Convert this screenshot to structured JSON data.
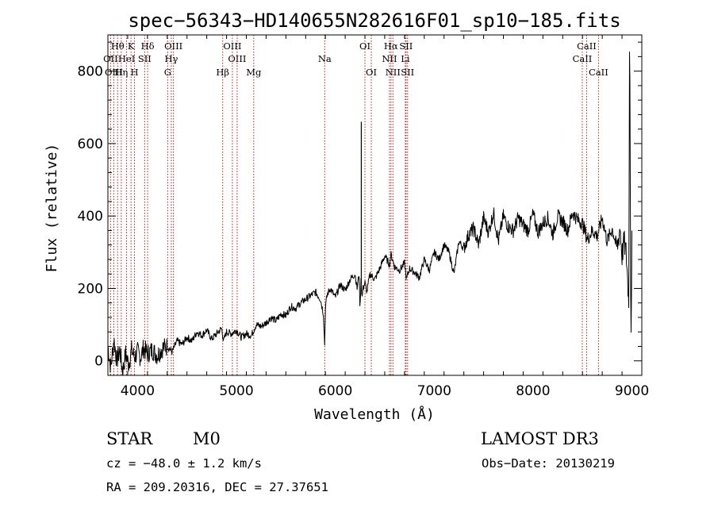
{
  "chart_data": {
    "type": "line",
    "title": "spec−56343−HD140655N282616F01_sp10−185.fits",
    "xlabel": "Wavelength (Å)",
    "ylabel": "Flux (relative)",
    "xlim": [
      3700,
      9100
    ],
    "ylim": [
      -40,
      900
    ],
    "xticks": [
      4000,
      5000,
      6000,
      7000,
      8000,
      9000
    ],
    "yticks": [
      0,
      200,
      400,
      600,
      800
    ],
    "xtick_labels": [
      "4000",
      "5000",
      "6000",
      "7000",
      "8000",
      "9000"
    ],
    "ytick_labels": [
      "0",
      "200",
      "400",
      "600",
      "800"
    ],
    "grid": false,
    "series": [
      {
        "name": "flux",
        "color": "#000000",
        "x": [
          3700,
          3730,
          3760,
          3790,
          3820,
          3850,
          3880,
          3910,
          3940,
          3970,
          4000,
          4030,
          4060,
          4100,
          4150,
          4200,
          4250,
          4300,
          4350,
          4400,
          4450,
          4500,
          4550,
          4600,
          4650,
          4700,
          4750,
          4800,
          4850,
          4870,
          4900,
          4950,
          5000,
          5050,
          5100,
          5150,
          5200,
          5250,
          5300,
          5350,
          5400,
          5450,
          5500,
          5550,
          5600,
          5650,
          5700,
          5750,
          5800,
          5850,
          5880,
          5890,
          5893,
          5900,
          5920,
          5950,
          6000,
          6050,
          6100,
          6150,
          6200,
          6220,
          6240,
          6250,
          6260,
          6270,
          6280,
          6300,
          6320,
          6350,
          6400,
          6450,
          6500,
          6550,
          6562,
          6580,
          6600,
          6650,
          6700,
          6720,
          6750,
          6800,
          6850,
          6900,
          6950,
          7000,
          7050,
          7100,
          7150,
          7200,
          7250,
          7300,
          7350,
          7400,
          7450,
          7500,
          7550,
          7600,
          7650,
          7700,
          7750,
          7800,
          7850,
          7900,
          7950,
          8000,
          8050,
          8100,
          8150,
          8200,
          8250,
          8300,
          8350,
          8400,
          8450,
          8500,
          8550,
          8600,
          8650,
          8700,
          8750,
          8800,
          8850,
          8880,
          8900,
          8920,
          8940,
          8950,
          8960,
          8970,
          8975,
          8980,
          8990,
          9000
        ],
        "y": [
          40,
          -20,
          60,
          0,
          30,
          -30,
          20,
          -10,
          30,
          10,
          25,
          10,
          35,
          20,
          30,
          15,
          35,
          40,
          25,
          55,
          45,
          65,
          55,
          80,
          70,
          85,
          60,
          75,
          90,
          55,
          80,
          75,
          85,
          65,
          75,
          70,
          100,
          95,
          105,
          120,
          110,
          130,
          125,
          150,
          145,
          160,
          170,
          180,
          190,
          170,
          130,
          60,
          40,
          150,
          185,
          200,
          175,
          210,
          195,
          225,
          240,
          200,
          240,
          140,
          230,
          170,
          200,
          215,
          190,
          240,
          225,
          255,
          290,
          265,
          295,
          280,
          260,
          250,
          270,
          225,
          255,
          245,
          230,
          280,
          250,
          300,
          280,
          320,
          300,
          240,
          330,
          310,
          350,
          365,
          320,
          395,
          355,
          410,
          330,
          400,
          370,
          360,
          395,
          375,
          360,
          405,
          355,
          380,
          395,
          350,
          400,
          385,
          360,
          410,
          390,
          380,
          335,
          360,
          345,
          395,
          330,
          365,
          310,
          370,
          290,
          330,
          300,
          260,
          200,
          170,
          880,
          800,
          40,
          330
        ]
      }
    ],
    "spike_x": 6263,
    "spike_y": 660,
    "spectral_lines": [
      {
        "label": "Hθ",
        "wave": 3798,
        "row": 1
      },
      {
        "label": "OII",
        "wave": 3727,
        "row": 2
      },
      {
        "label": "OIII",
        "wave": 3760,
        "row": 3
      },
      {
        "label": "Hη",
        "wave": 3835,
        "row": 3
      },
      {
        "label": "K",
        "wave": 3934,
        "row": 1
      },
      {
        "label": "HeI",
        "wave": 3889,
        "row": 2
      },
      {
        "label": "H",
        "wave": 3969,
        "row": 3
      },
      {
        "label": "SII",
        "wave": 4072,
        "row": 2
      },
      {
        "label": "Hδ",
        "wave": 4102,
        "row": 1
      },
      {
        "label": "OIII",
        "wave": 4363,
        "row": 1
      },
      {
        "label": "Hγ",
        "wave": 4341,
        "row": 2
      },
      {
        "label": "G",
        "wave": 4305,
        "row": 3
      },
      {
        "label": "OIII",
        "wave": 4959,
        "row": 1
      },
      {
        "label": "OIII",
        "wave": 5007,
        "row": 2
      },
      {
        "label": "Hβ",
        "wave": 4861,
        "row": 3
      },
      {
        "label": "Mg",
        "wave": 5175,
        "row": 3
      },
      {
        "label": "Na",
        "wave": 5893,
        "row": 2
      },
      {
        "label": "OI",
        "wave": 6300,
        "row": 1
      },
      {
        "label": "OI",
        "wave": 6364,
        "row": 3
      },
      {
        "label": "Hα",
        "wave": 6563,
        "row": 1
      },
      {
        "label": "NII",
        "wave": 6548,
        "row": 2
      },
      {
        "label": "NII",
        "wave": 6583,
        "row": 3
      },
      {
        "label": "SII",
        "wave": 6716,
        "row": 1
      },
      {
        "label": "Li",
        "wave": 6708,
        "row": 2
      },
      {
        "label": "SII",
        "wave": 6731,
        "row": 3
      },
      {
        "label": "CaII",
        "wave": 8542,
        "row": 1
      },
      {
        "label": "CaII",
        "wave": 8498,
        "row": 2
      },
      {
        "label": "CaII",
        "wave": 8662,
        "row": 3
      }
    ],
    "line_color": "#b22222"
  },
  "info": {
    "class": "STAR",
    "subclass": "M0",
    "survey": "LAMOST DR3",
    "cz": "cz = −48.0 ± 1.2 km/s",
    "obs_date": "Obs−Date: 20130219",
    "coords": "RA = 209.20316, DEC =  27.37651"
  }
}
